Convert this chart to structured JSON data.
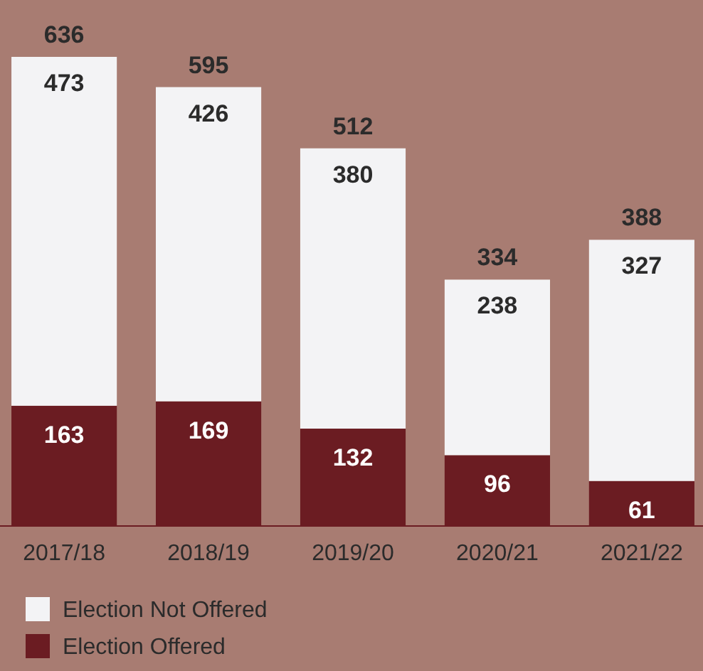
{
  "chart_data": {
    "type": "bar",
    "stacked": true,
    "categories": [
      "2017/18",
      "2018/19",
      "2019/20",
      "2020/21",
      "2021/22"
    ],
    "series": [
      {
        "name": "Election Offered",
        "color": "#6b1c22",
        "values": [
          163,
          169,
          132,
          96,
          61
        ]
      },
      {
        "name": "Election Not Offered",
        "color": "#f3f3f5",
        "values": [
          473,
          426,
          380,
          238,
          327
        ]
      }
    ],
    "data_labels": true,
    "totals": [
      "636",
      "595",
      "512",
      "334",
      "388"
    ],
    "legend": "bottom left"
  }
}
